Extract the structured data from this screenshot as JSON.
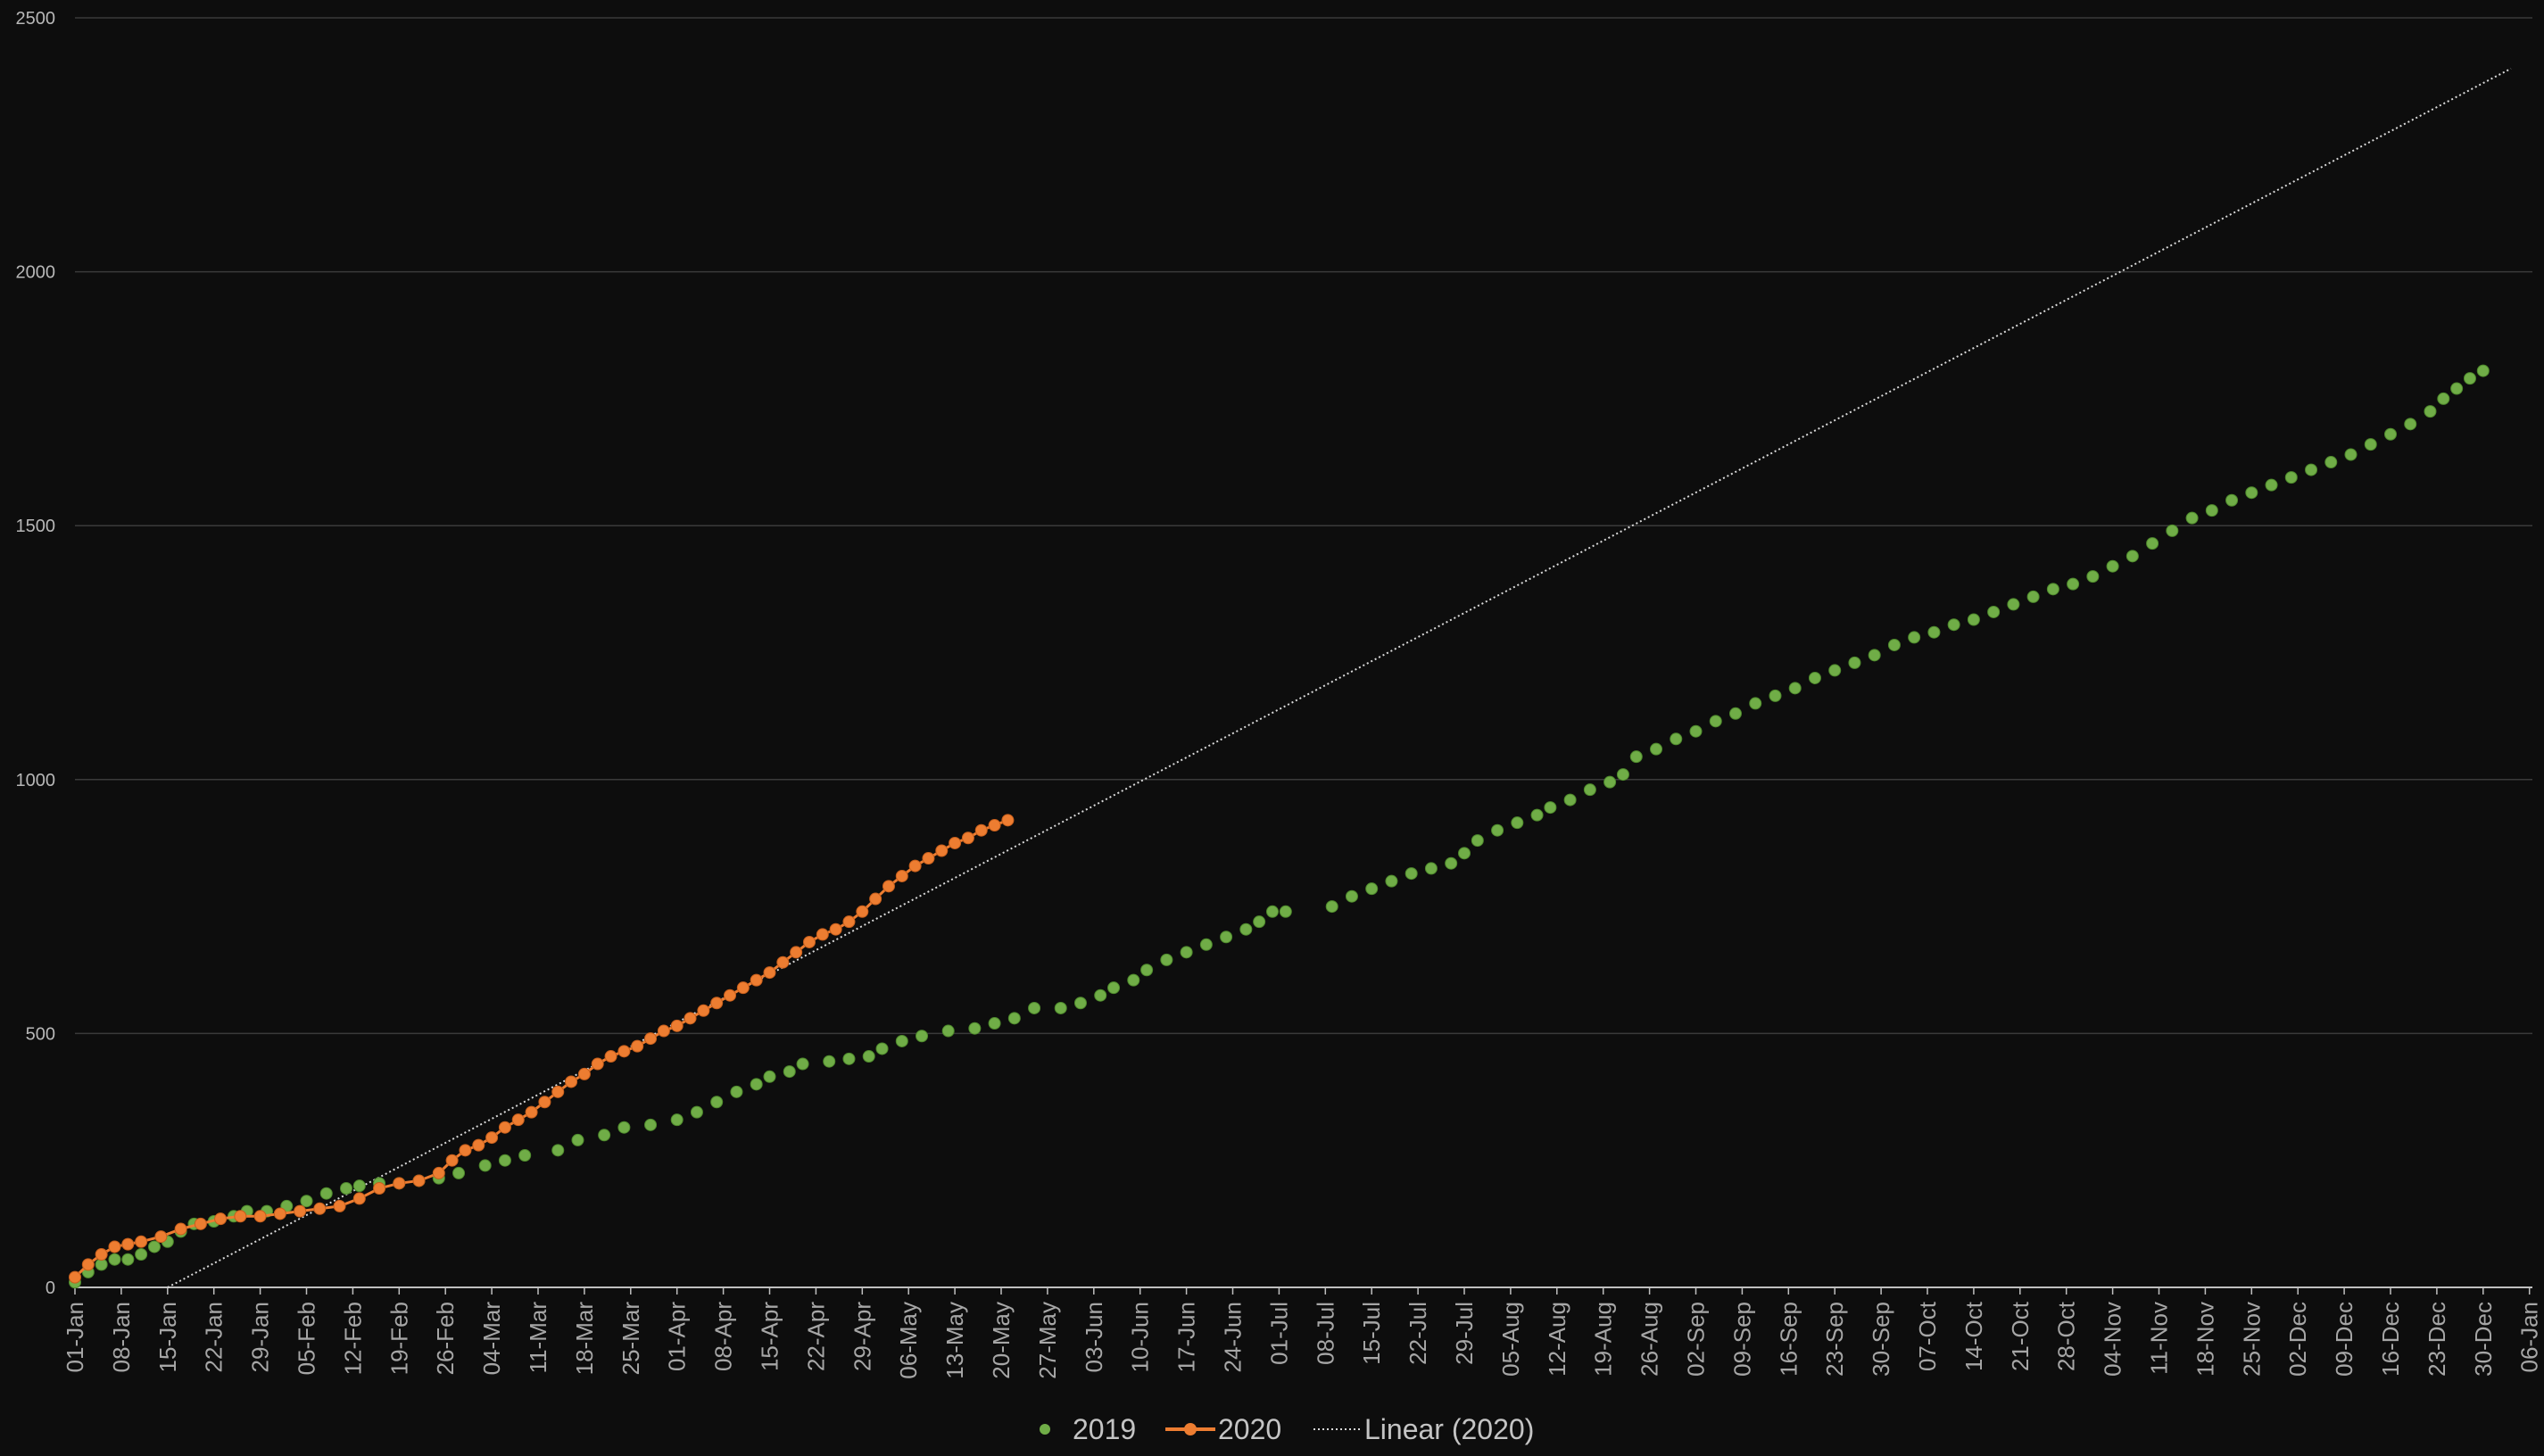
{
  "chart_data": {
    "type": "scatter",
    "title": "",
    "xlabel": "",
    "ylabel": "",
    "ylim": [
      0,
      2500
    ],
    "yticks": [
      0,
      500,
      1000,
      1500,
      2000,
      2500
    ],
    "x_axis": {
      "type": "date",
      "range": [
        "01-Jan",
        "06-Jan"
      ],
      "tick_labels": [
        "01-Jan",
        "08-Jan",
        "15-Jan",
        "22-Jan",
        "29-Jan",
        "05-Feb",
        "12-Feb",
        "19-Feb",
        "26-Feb",
        "04-Mar",
        "11-Mar",
        "18-Mar",
        "25-Mar",
        "01-Apr",
        "08-Apr",
        "15-Apr",
        "22-Apr",
        "29-Apr",
        "06-May",
        "13-May",
        "20-May",
        "27-May",
        "03-Jun",
        "10-Jun",
        "17-Jun",
        "24-Jun",
        "01-Jul",
        "08-Jul",
        "15-Jul",
        "22-Jul",
        "29-Jul",
        "05-Aug",
        "12-Aug",
        "19-Aug",
        "26-Aug",
        "02-Sep",
        "09-Sep",
        "16-Sep",
        "23-Sep",
        "30-Sep",
        "07-Oct",
        "14-Oct",
        "21-Oct",
        "28-Oct",
        "04-Nov",
        "11-Nov",
        "18-Nov",
        "25-Nov",
        "02-Dec",
        "09-Dec",
        "16-Dec",
        "23-Dec",
        "30-Dec",
        "06-Jan"
      ]
    },
    "grid": true,
    "legend": "bottom",
    "series": [
      {
        "name": "2019",
        "type": "scatter",
        "color": "#70ad47",
        "points": [
          [
            "01-Jan",
            10
          ],
          [
            "03-Jan",
            30
          ],
          [
            "05-Jan",
            45
          ],
          [
            "07-Jan",
            55
          ],
          [
            "09-Jan",
            55
          ],
          [
            "11-Jan",
            65
          ],
          [
            "13-Jan",
            80
          ],
          [
            "15-Jan",
            90
          ],
          [
            "17-Jan",
            110
          ],
          [
            "19-Jan",
            125
          ],
          [
            "22-Jan",
            130
          ],
          [
            "25-Jan",
            140
          ],
          [
            "27-Jan",
            150
          ],
          [
            "30-Jan",
            150
          ],
          [
            "02-Feb",
            160
          ],
          [
            "05-Feb",
            170
          ],
          [
            "08-Feb",
            185
          ],
          [
            "11-Feb",
            195
          ],
          [
            "13-Feb",
            200
          ],
          [
            "16-Feb",
            205
          ],
          [
            "19-Feb",
            205
          ],
          [
            "22-Feb",
            210
          ],
          [
            "25-Feb",
            215
          ],
          [
            "28-Feb",
            225
          ],
          [
            "03-Mar",
            240
          ],
          [
            "06-Mar",
            250
          ],
          [
            "09-Mar",
            260
          ],
          [
            "14-Mar",
            270
          ],
          [
            "17-Mar",
            290
          ],
          [
            "21-Mar",
            300
          ],
          [
            "24-Mar",
            315
          ],
          [
            "28-Mar",
            320
          ],
          [
            "01-Apr",
            330
          ],
          [
            "04-Apr",
            345
          ],
          [
            "07-Apr",
            365
          ],
          [
            "10-Apr",
            385
          ],
          [
            "13-Apr",
            400
          ],
          [
            "15-Apr",
            415
          ],
          [
            "18-Apr",
            425
          ],
          [
            "20-Apr",
            440
          ],
          [
            "24-Apr",
            445
          ],
          [
            "27-Apr",
            450
          ],
          [
            "30-Apr",
            455
          ],
          [
            "02-May",
            470
          ],
          [
            "05-May",
            485
          ],
          [
            "08-May",
            495
          ],
          [
            "12-May",
            505
          ],
          [
            "16-May",
            510
          ],
          [
            "19-May",
            520
          ],
          [
            "22-May",
            530
          ],
          [
            "25-May",
            550
          ],
          [
            "29-May",
            550
          ],
          [
            "01-Jun",
            560
          ],
          [
            "04-Jun",
            575
          ],
          [
            "06-Jun",
            590
          ],
          [
            "09-Jun",
            605
          ],
          [
            "11-Jun",
            625
          ],
          [
            "14-Jun",
            645
          ],
          [
            "17-Jun",
            660
          ],
          [
            "20-Jun",
            675
          ],
          [
            "23-Jun",
            690
          ],
          [
            "26-Jun",
            705
          ],
          [
            "28-Jun",
            720
          ],
          [
            "30-Jun",
            740
          ],
          [
            "02-Jul",
            740
          ],
          [
            "09-Jul",
            750
          ],
          [
            "12-Jul",
            770
          ],
          [
            "15-Jul",
            785
          ],
          [
            "18-Jul",
            800
          ],
          [
            "21-Jul",
            815
          ],
          [
            "24-Jul",
            825
          ],
          [
            "27-Jul",
            835
          ],
          [
            "29-Jul",
            855
          ],
          [
            "31-Jul",
            880
          ],
          [
            "03-Aug",
            900
          ],
          [
            "06-Aug",
            915
          ],
          [
            "09-Aug",
            930
          ],
          [
            "11-Aug",
            945
          ],
          [
            "14-Aug",
            960
          ],
          [
            "17-Aug",
            980
          ],
          [
            "20-Aug",
            995
          ],
          [
            "22-Aug",
            1010
          ],
          [
            "24-Aug",
            1045
          ],
          [
            "27-Aug",
            1060
          ],
          [
            "30-Aug",
            1080
          ],
          [
            "02-Sep",
            1095
          ],
          [
            "05-Sep",
            1115
          ],
          [
            "08-Sep",
            1130
          ],
          [
            "11-Sep",
            1150
          ],
          [
            "14-Sep",
            1165
          ],
          [
            "17-Sep",
            1180
          ],
          [
            "20-Sep",
            1200
          ],
          [
            "23-Sep",
            1215
          ],
          [
            "26-Sep",
            1230
          ],
          [
            "29-Sep",
            1245
          ],
          [
            "02-Oct",
            1265
          ],
          [
            "05-Oct",
            1280
          ],
          [
            "08-Oct",
            1290
          ],
          [
            "11-Oct",
            1305
          ],
          [
            "14-Oct",
            1315
          ],
          [
            "17-Oct",
            1330
          ],
          [
            "20-Oct",
            1345
          ],
          [
            "23-Oct",
            1360
          ],
          [
            "26-Oct",
            1375
          ],
          [
            "29-Oct",
            1385
          ],
          [
            "01-Nov",
            1400
          ],
          [
            "04-Nov",
            1420
          ],
          [
            "07-Nov",
            1440
          ],
          [
            "10-Nov",
            1465
          ],
          [
            "13-Nov",
            1490
          ],
          [
            "16-Nov",
            1515
          ],
          [
            "19-Nov",
            1530
          ],
          [
            "22-Nov",
            1550
          ],
          [
            "25-Nov",
            1565
          ],
          [
            "28-Nov",
            1580
          ],
          [
            "01-Dec",
            1595
          ],
          [
            "04-Dec",
            1610
          ],
          [
            "07-Dec",
            1625
          ],
          [
            "10-Dec",
            1640
          ],
          [
            "13-Dec",
            1660
          ],
          [
            "16-Dec",
            1680
          ],
          [
            "19-Dec",
            1700
          ],
          [
            "22-Dec",
            1725
          ],
          [
            "24-Dec",
            1750
          ],
          [
            "26-Dec",
            1770
          ],
          [
            "28-Dec",
            1790
          ],
          [
            "30-Dec",
            1805
          ]
        ]
      },
      {
        "name": "2020",
        "type": "line-markers",
        "color": "#ed7d31",
        "points": [
          [
            "01-Jan",
            20
          ],
          [
            "03-Jan",
            45
          ],
          [
            "05-Jan",
            65
          ],
          [
            "07-Jan",
            80
          ],
          [
            "09-Jan",
            85
          ],
          [
            "11-Jan",
            90
          ],
          [
            "14-Jan",
            100
          ],
          [
            "17-Jan",
            115
          ],
          [
            "20-Jan",
            125
          ],
          [
            "23-Jan",
            135
          ],
          [
            "26-Jan",
            140
          ],
          [
            "29-Jan",
            140
          ],
          [
            "01-Feb",
            145
          ],
          [
            "04-Feb",
            150
          ],
          [
            "07-Feb",
            155
          ],
          [
            "10-Feb",
            160
          ],
          [
            "13-Feb",
            175
          ],
          [
            "16-Feb",
            195
          ],
          [
            "19-Feb",
            205
          ],
          [
            "22-Feb",
            210
          ],
          [
            "25-Feb",
            225
          ],
          [
            "27-Feb",
            250
          ],
          [
            "29-Feb",
            270
          ],
          [
            "02-Mar",
            280
          ],
          [
            "04-Mar",
            295
          ],
          [
            "06-Mar",
            315
          ],
          [
            "08-Mar",
            330
          ],
          [
            "10-Mar",
            345
          ],
          [
            "12-Mar",
            365
          ],
          [
            "14-Mar",
            385
          ],
          [
            "16-Mar",
            405
          ],
          [
            "18-Mar",
            420
          ],
          [
            "20-Mar",
            440
          ],
          [
            "22-Mar",
            455
          ],
          [
            "24-Mar",
            465
          ],
          [
            "26-Mar",
            475
          ],
          [
            "28-Mar",
            490
          ],
          [
            "30-Mar",
            505
          ],
          [
            "01-Apr",
            515
          ],
          [
            "03-Apr",
            530
          ],
          [
            "05-Apr",
            545
          ],
          [
            "07-Apr",
            560
          ],
          [
            "09-Apr",
            575
          ],
          [
            "11-Apr",
            590
          ],
          [
            "13-Apr",
            605
          ],
          [
            "15-Apr",
            620
          ],
          [
            "17-Apr",
            640
          ],
          [
            "19-Apr",
            660
          ],
          [
            "21-Apr",
            680
          ],
          [
            "23-Apr",
            695
          ],
          [
            "25-Apr",
            705
          ],
          [
            "27-Apr",
            720
          ],
          [
            "29-Apr",
            740
          ],
          [
            "01-May",
            765
          ],
          [
            "03-May",
            790
          ],
          [
            "05-May",
            810
          ],
          [
            "07-May",
            830
          ],
          [
            "09-May",
            845
          ],
          [
            "11-May",
            860
          ],
          [
            "13-May",
            875
          ],
          [
            "15-May",
            885
          ],
          [
            "17-May",
            900
          ],
          [
            "19-May",
            910
          ],
          [
            "21-May",
            920
          ]
        ]
      },
      {
        "name": "Linear (2020)",
        "type": "trendline",
        "color": "#d9d9d9",
        "points": [
          [
            "15-Jan",
            0
          ],
          [
            "01-Jan",
            2400
          ]
        ]
      }
    ]
  }
}
